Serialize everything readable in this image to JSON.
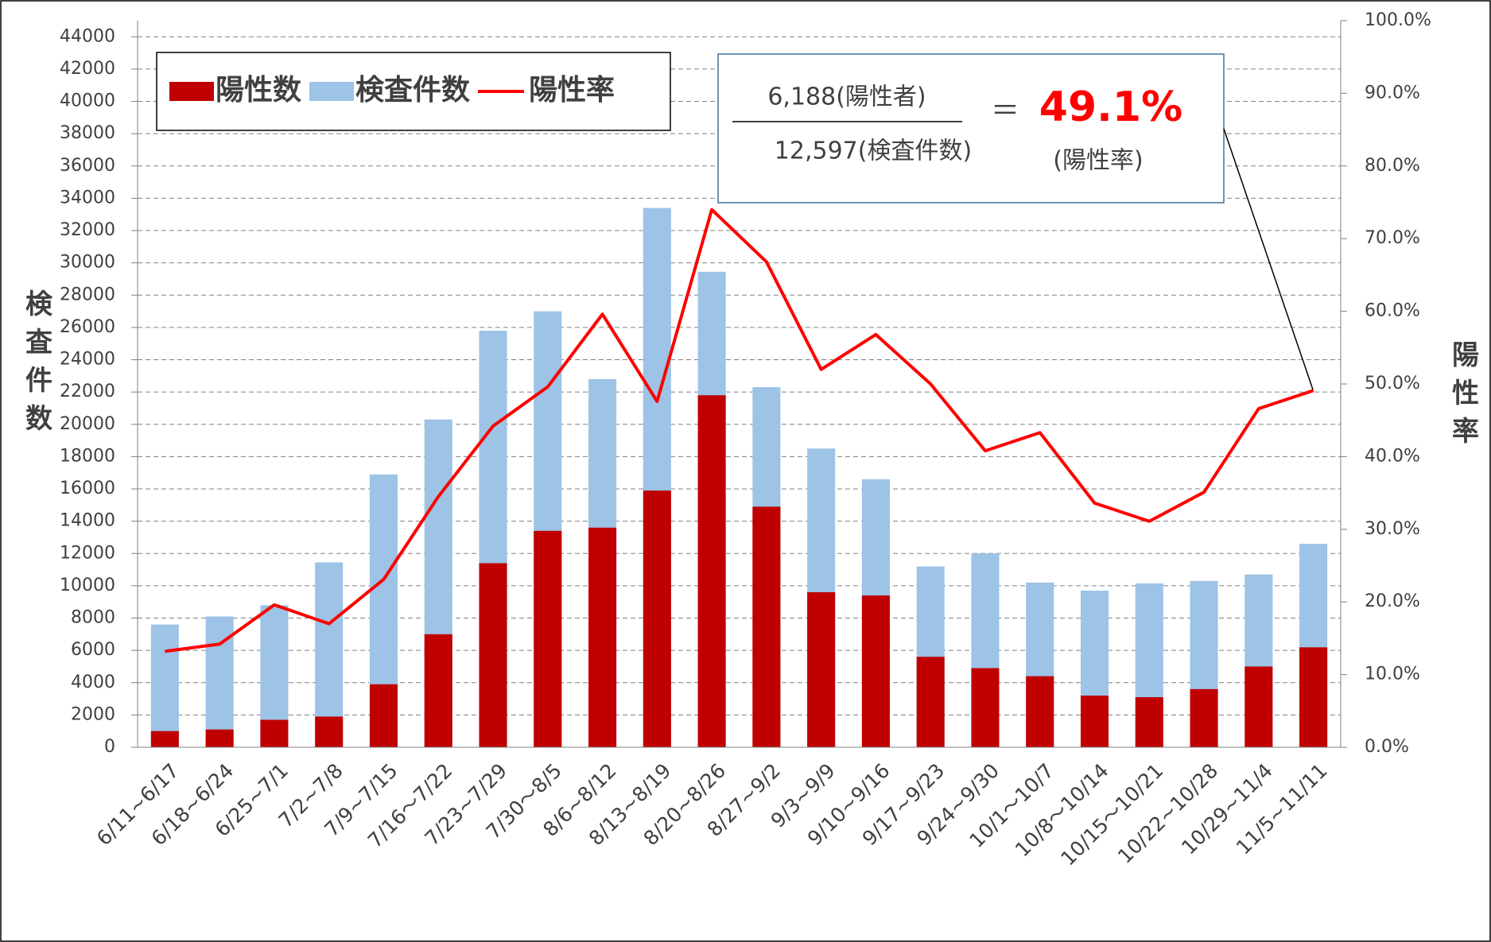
{
  "chart_data": {
    "type": "bar",
    "y_label": "検査件数",
    "y2_label": "陽性率",
    "categories": [
      "6/11~6/17",
      "6/18~6/24",
      "6/25~7/1",
      "7/2~7/8",
      "7/9~7/15",
      "7/16～7/22",
      "7/23~7/29",
      "7/30～8/5",
      "8/6~8/12",
      "8/13~8/19",
      "8/20~8/26",
      "8/27~9/2",
      "9/3~9/9",
      "9/10~9/16",
      "9/17~9/23",
      "9/24~9/30",
      "10/1～10/7",
      "10/8～10/14",
      "10/15～10/21",
      "10/22~10/28",
      "10/29~11/4",
      "11/5~11/11"
    ],
    "series": [
      {
        "name": "陽性数",
        "color": "#c00000",
        "type": "bar",
        "values": [
          1000,
          1100,
          1700,
          1900,
          3900,
          7000,
          11400,
          13400,
          13600,
          15900,
          21800,
          14900,
          9600,
          9400,
          5600,
          4900,
          4400,
          3200,
          3100,
          3600,
          5000,
          6188
        ]
      },
      {
        "name": "検査件数",
        "color": "#9dc3e6",
        "type": "bar",
        "values": [
          7600,
          8100,
          8800,
          11450,
          16900,
          20300,
          25800,
          27000,
          22800,
          33400,
          29450,
          22300,
          18500,
          16600,
          11200,
          12000,
          10200,
          9700,
          10150,
          10300,
          10700,
          12597
        ]
      },
      {
        "name": "陽性率",
        "color": "#ff0000",
        "type": "line",
        "axis": "y2",
        "values": [
          13.2,
          14.2,
          19.6,
          17.0,
          23.1,
          34.5,
          44.2,
          49.6,
          59.6,
          47.6,
          74.0,
          66.8,
          52.0,
          56.8,
          50.0,
          40.8,
          43.3,
          33.6,
          31.1,
          35.1,
          46.6,
          49.1
        ]
      }
    ],
    "ylim": [
      0,
      45000
    ],
    "yticks": [
      0,
      2000,
      4000,
      6000,
      8000,
      10000,
      12000,
      14000,
      16000,
      18000,
      20000,
      22000,
      24000,
      26000,
      28000,
      30000,
      32000,
      34000,
      36000,
      38000,
      40000,
      42000,
      44000
    ],
    "y2lim": [
      0,
      100
    ],
    "y2ticks": [
      {
        "value": 0,
        "label": "0.0%"
      },
      {
        "value": 10,
        "label": "10.0%"
      },
      {
        "value": 20,
        "label": "20.0%"
      },
      {
        "value": 30,
        "label": "30.0%"
      },
      {
        "value": 40,
        "label": "40.0%"
      },
      {
        "value": 50,
        "label": "50.0%"
      },
      {
        "value": 60,
        "label": "60.0%"
      },
      {
        "value": 70,
        "label": "70.0%"
      },
      {
        "value": 80,
        "label": "80.0%"
      },
      {
        "value": 90,
        "label": "90.0%"
      },
      {
        "value": 100,
        "label": "100.0%"
      }
    ],
    "grid": true,
    "legend": "upper left",
    "annotation": {
      "numerator": "6,188(陽性者)",
      "denominator": "12,597(検査件数)",
      "equals": "＝",
      "result": "49.1%",
      "result_label": "(陽性率)"
    }
  }
}
